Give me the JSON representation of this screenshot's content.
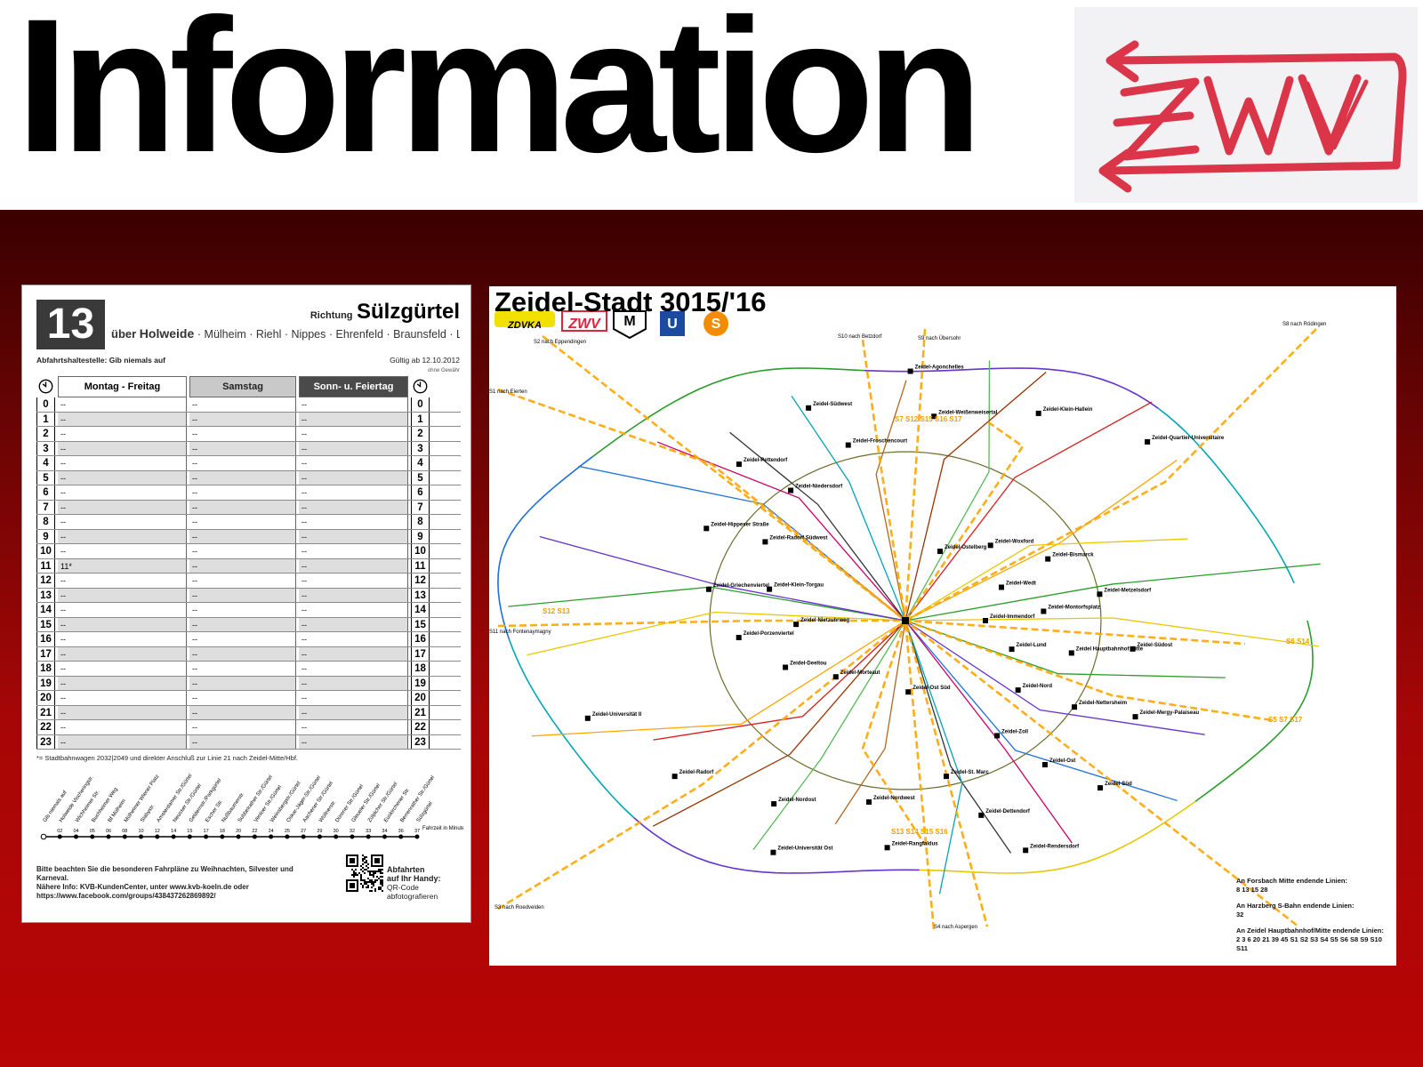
{
  "header": {
    "title": "Information"
  },
  "logo": {
    "text": "ZWV",
    "color": "#d8263a"
  },
  "timetable": {
    "line_number": "13",
    "direction_label": "Richtung",
    "direction": "Sülzgürtel",
    "via_label": "über",
    "via_first": "Holweide",
    "via_rest": "· Mülheim · Riehl · Nippes · Ehrenfeld · Braunsfeld · Lindenthal",
    "stop_label": "Abfahrtshaltestelle: Gib niemals auf",
    "valid_from": "Gültig ab 12.10.2012",
    "no_guarantee": "ohne Gewähr",
    "columns": [
      "Montag - Freitag",
      "Samstag",
      "Sonn- u. Feiertag"
    ],
    "rows": [
      {
        "hour": "0",
        "weekday": "--",
        "saturday": "--",
        "sunday": "--"
      },
      {
        "hour": "1",
        "weekday": "--",
        "saturday": "--",
        "sunday": "--"
      },
      {
        "hour": "2",
        "weekday": "--",
        "saturday": "--",
        "sunday": "--"
      },
      {
        "hour": "3",
        "weekday": "--",
        "saturday": "--",
        "sunday": "--"
      },
      {
        "hour": "4",
        "weekday": "--",
        "saturday": "--",
        "sunday": "--"
      },
      {
        "hour": "5",
        "weekday": "--",
        "saturday": "--",
        "sunday": "--"
      },
      {
        "hour": "6",
        "weekday": "--",
        "saturday": "--",
        "sunday": "--"
      },
      {
        "hour": "7",
        "weekday": "--",
        "saturday": "--",
        "sunday": "--"
      },
      {
        "hour": "8",
        "weekday": "--",
        "saturday": "--",
        "sunday": "--"
      },
      {
        "hour": "9",
        "weekday": "--",
        "saturday": "--",
        "sunday": "--"
      },
      {
        "hour": "10",
        "weekday": "--",
        "saturday": "--",
        "sunday": "--"
      },
      {
        "hour": "11",
        "weekday": "11*",
        "saturday": "--",
        "sunday": "--"
      },
      {
        "hour": "12",
        "weekday": "--",
        "saturday": "--",
        "sunday": "--"
      },
      {
        "hour": "13",
        "weekday": "--",
        "saturday": "--",
        "sunday": "--"
      },
      {
        "hour": "14",
        "weekday": "--",
        "saturday": "--",
        "sunday": "--"
      },
      {
        "hour": "15",
        "weekday": "--",
        "saturday": "--",
        "sunday": "--"
      },
      {
        "hour": "16",
        "weekday": "--",
        "saturday": "--",
        "sunday": "--"
      },
      {
        "hour": "17",
        "weekday": "--",
        "saturday": "--",
        "sunday": "--"
      },
      {
        "hour": "18",
        "weekday": "--",
        "saturday": "--",
        "sunday": "--"
      },
      {
        "hour": "19",
        "weekday": "--",
        "saturday": "--",
        "sunday": "--"
      },
      {
        "hour": "20",
        "weekday": "--",
        "saturday": "--",
        "sunday": "--"
      },
      {
        "hour": "21",
        "weekday": "--",
        "saturday": "--",
        "sunday": "--"
      },
      {
        "hour": "22",
        "weekday": "--",
        "saturday": "--",
        "sunday": "--"
      },
      {
        "hour": "23",
        "weekday": "--",
        "saturday": "--",
        "sunday": "--"
      }
    ],
    "footnote": "*= Stadtbahnwagen 2032|2049 und direkter Anschluß zur Linie 21 nach Zeidel-Mitte/Hbf.",
    "stops": [
      "Gib niemals auf",
      "Holweide Vischeringstr.",
      "Wichheimer Str.",
      "Buchheimer Weg",
      "Bf Mülheim",
      "Mülheimer Wiener Platz",
      "Slabystr.",
      "Amsterdamer Str./Gürtel",
      "Neusser Str./Gürtel",
      "Geldernstr./Parkgürtel",
      "Escher Str.",
      "Nußbaumerstr.",
      "Subbelrather Str./Gürtel",
      "Venloer Str./Gürtel",
      "Weinsbergstr./Gürtel",
      "Oskar-Jäger-Str./Gürtel",
      "Aachener Str./Gürtel",
      "Wüllnerstr.",
      "Dürener Str./Gürtel",
      "Gleueler Str./Gürtel",
      "Zülpicher Str./Gürtel",
      "Euskirchener Str.",
      "Berrenrather Str./Gürtel",
      "Sülzgürtel"
    ],
    "minutes": [
      "02",
      "04",
      "05",
      "06",
      "08",
      "10",
      "12",
      "14",
      "15",
      "17",
      "18",
      "20",
      "22",
      "24",
      "25",
      "27",
      "29",
      "30",
      "32",
      "33",
      "34",
      "36",
      "37"
    ],
    "travel_time_label": "Fahrzeit in Minuten",
    "footer_lines": [
      "Bitte beachten Sie die besonderen Fahrpläne zu Weihnachten, Silvester und Karneval.",
      "Nähere Info: KVB-KundenCenter, unter www.kvb-koeln.de oder",
      "https://www.facebook.com/groups/438437262869892/"
    ],
    "qr_title": "Abfahrten",
    "qr_sub": "auf Ihr Handy:",
    "qr_hint": "QR-Code abfotografieren"
  },
  "map": {
    "title": "Zeidel-Stadt 3015/'16",
    "operator_logos": [
      "ZDVKA",
      "ZWV",
      "M",
      "U",
      "S"
    ],
    "outer_labels": [
      "S2 nach Eppendingen",
      "S10 nach Betzdorf",
      "S9 nach Übersohr",
      "S8 nach Rödingen",
      "S1 nach Eierten",
      "S11 nach Fontenaymagny",
      "S3 nach Roedvelden",
      "S4 nach Aspergen"
    ],
    "orange_labels": [
      "S7 S12 S15 S16 S17",
      "S12 S13",
      "S6 S14",
      "S5 S7 S17",
      "S13 S14 S15 S16"
    ],
    "stations": [
      "Zeidel-Immendorf",
      "Zeidel-Lund",
      "Zeidel-Nord",
      "Zeidel-Zoll",
      "Zeidel-St. Marc",
      "Zeidel-Nordwest",
      "Zeidel-Nordost",
      "Zeidel-Radorf",
      "Zeidel-Universität II",
      "Zeidel-Nietzuhrweg",
      "Zeidel-Klein-Torgau",
      "Zeidel-Radorf Südwest",
      "Zeidel-Niedersdorf",
      "Zeidel-Froschencourt",
      "Zeidel-Weißenweisertal",
      "Zeidel-Klein-Hallein",
      "Zeidel-Quartier-Universitaire",
      "Zeidel-Wedt",
      "Zeidel-Montorfsplatz",
      "Zeidel Hauptbahnhof Mitte",
      "Zeidel-Nettersheim",
      "Zeidel-Ost",
      "Zeidel-Dettendorf",
      "Zeidel-Rangfaldus",
      "Zeidel-Universität Ost",
      "Zeidel-Morteaut",
      "Zeidel-Deeltou",
      "Zeidel-Porzenviertel",
      "Zeidel-Griechenviertel",
      "Zeidel-Hippeser Straße",
      "Zeidel-Pettendorf",
      "Zeidel-Südwest",
      "Zeidel-Agonchelles",
      "Zeidel-Ostelberg",
      "Zeidel-Woxford",
      "Zeidel-Bismarck",
      "Zeidel-Metzelsdorf",
      "Zeidel-Südost",
      "Zeidel-Mergy-Palaiseau",
      "Zeidel-Süd",
      "Zeidel-Rendersdorf",
      "Zeidel-Ost Süd"
    ],
    "legend": [
      {
        "title": "An Forsbach Mitte endende Linien:",
        "value": "8 13 15 28"
      },
      {
        "title": "An Harzberg S-Bahn endende Linien:",
        "value": "32"
      },
      {
        "title": "An Zeidel Hauptbahnhof/Mitte endende Linien:",
        "value": "2 3 6 20 21 39 45 S1 S2 S3 S4 S5 S6 S8 S9 S10 S11"
      }
    ],
    "line_colors": [
      "#ffa500",
      "#e8c800",
      "#2a9d2a",
      "#6633cc",
      "#1e6fd9",
      "#cc0066",
      "#333333",
      "#00a6b5",
      "#b2661f",
      "#55bb55",
      "#993300",
      "#d81c1c"
    ]
  }
}
